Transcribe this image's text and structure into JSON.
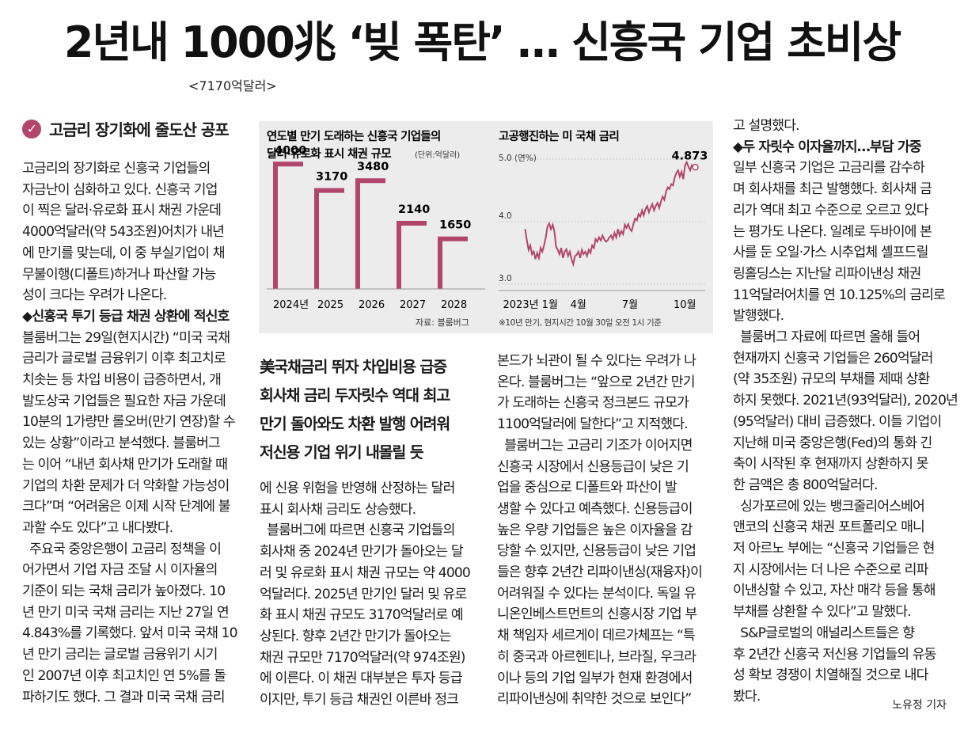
{
  "headline": "2년내 1000兆 ‘빚 폭탄’ … 신흥국 기업 초비상",
  "subhead": "<7170억달러>",
  "section1": "고금리 장기화에 줄도산 공포",
  "lead": [
    "美국채금리 뛰자 차입비용 급증",
    "회사채 금리 두자릿수 역대 최고",
    "만기 돌아와도 차환 발행 어려워",
    "저신용 기업 위기 내몰릴 듯"
  ],
  "col1": [
    "고금리의 장기화로 신흥국 기업들의",
    "자금난이 심화하고 있다. 신흥국 기업",
    "이 찍은 달러·유로화 표시 채권 가운데",
    "4000억달러(약 543조원)어치가 내년",
    "에 만기를 맞는데, 이 중 부실기업이 채",
    "무불이행(디폴트)하거나 파산할 가능",
    "성이 크다는 우려가 나온다.",
    "◆신흥국 투기 등급 채권 상환에 적신호",
    "블룸버그는 29일(현지시간) “미국 국채",
    "금리가 글로벌 금융위기 이후 최고치로",
    "치솟는 등 차입 비용이 급증하면서, 개",
    "발도상국 기업들은 필요한 자금 가운데",
    "10분의 1가량만 롤오버(만기 연장)할 수",
    "있는 상황”이라고 분석했다. 블룸버그",
    "는 이어 “내년 회사채 만기가 도래할 때",
    "기업의 차환 문제가 더 악화할 가능성이",
    "크다”며 “어려움은 이제 시작 단계에 불",
    "과할 수도 있다”고 내다봤다.",
    "  주요국 중앙은행이 고금리 정책을 이",
    "어가면서 기업 자금 조달 시 이자율의",
    "기준이 되는 국채 금리가 높아졌다. 10",
    "년 만기 미국 국채 금리는 지난 27일 연",
    "4.843%를 기록했다. 앞서 미국 국채 10",
    "년 만기 금리는 글로벌 금융위기 시기",
    "인 2007년 이후 최고치인 연 5%를 돌",
    "파하기도 했다. 그 결과 미국 국채 금리"
  ],
  "col2": [
    "에 신용 위험을 반영해 산정하는 달러",
    "표시 회사채 금리도 상승했다.",
    "  블룸버그에 따르면 신흥국 기업들의",
    "회사채 중 2024년 만기가 돌아오는 달",
    "러 및 유로화 표시 채권 규모는 약 4000",
    "억달러다. 2025년 만기인 달러 및 유로",
    "화 표시 채권 규모도 3170억달러로 예",
    "상된다. 향후 2년간 만기가 돌아오는",
    "채권 규모만 7170억달러(약 974조원)",
    "에 이른다. 이 채권 대부분은 투자 등급",
    "이지만, 투기 등급 채권인 이른바 정크"
  ],
  "col3": [
    "본드가 뇌관이 될 수 있다는 우려가 나",
    "온다. 블룸버그는 “앞으로 2년간 만기",
    "가 도래하는 신흥국 정크본드 규모가",
    "1100억달러에 달한다”고 지적했다.",
    "  블룸버그는 고금리 기조가 이어지면",
    "신흥국 시장에서 신용등급이 낮은 기",
    "업을 중심으로 디폴트와 파산이 발",
    "생할 수 있다고 예측했다. 신용등급이",
    "높은 우량 기업들은 높은 이자율을 감",
    "당할 수 있지만, 신용등급이 낮은 기업",
    "들은 향후 2년간 리파이낸싱(재융자)이",
    "어려워질 수 있다는 분석이다. 독일 유",
    "니온인베스트먼트의 신흥시장 기업 부",
    "채 책임자 세르게이 데르가체프는 “특",
    "히 중국과 아르헨티나, 브라질, 우크라",
    "이나 등의 기업 일부가 현재 환경에서",
    "리파이낸싱에 취약한 것으로 보인다”"
  ],
  "col4": [
    "고 설명했다.",
    "◆두 자릿수 이자율까지…부담 가중",
    "일부 신흥국 기업은 고금리를 감수하",
    "며 회사채를 최근 발행했다. 회사채 금",
    "리가 역대 최고 수준으로 오르고 있다",
    "는 평가도 나온다. 일례로 두바이에 본",
    "사를 둔 오일·가스 시추업체 셸프드릴",
    "링홀딩스는 지난달 리파이낸싱 채권",
    "11억달러어치를 연 10.125%의 금리로",
    "발행했다.",
    "  블룸버그 자료에 따르면 올해 들어",
    "현재까지 신흥국 기업들은 260억달러",
    "(약 35조원) 규모의 부채를 제때 상환",
    "하지 못했다. 2021년(93억달러), 2020년",
    "(95억달러) 대비 급증했다. 이들 기업이",
    "지난해 미국 중앙은행(Fed)의 통화 긴",
    "축이 시작된 후 현재까지 상환하지 못",
    "한 금액은 총 800억달러다.",
    "  싱가포르에 있는 뱅크줄리어스베어",
    "앤코의 신흥국 채권 포트폴리오 매니",
    "저 아르노 부에는 “신흥국 기업들은 현",
    "지 시장에서는 더 나은 수준으로 리파",
    "이낸싱할 수 있고, 자산 매각 등을 통해",
    "부채를 상환할 수 있다”고 말했다.",
    "  S&P글로벌의 애널리스트들은 향",
    "후 2년간 신흥국 저신용 기업들의 유동",
    "성 확보 경쟁이 치열해질 것으로 내다",
    "봤다."
  ],
  "byline": "노유정 기자",
  "chart_data": [
    {
      "type": "bar",
      "title": "연도별 만기 도래하는 신흥국 기업들의",
      "title2": "달러·유로화 표시 채권 규모",
      "unit": "(단위:억달러)",
      "categories": [
        "2024년",
        "2025",
        "2026",
        "2027",
        "2028"
      ],
      "values": [
        4000,
        3170,
        3480,
        2140,
        1650
      ],
      "value_labels": [
        "4000",
        "3170",
        "3480",
        "2140",
        "1650"
      ],
      "ylim": [
        0,
        4600
      ],
      "source": "자료: 블룸버그",
      "color": "#b1456b"
    },
    {
      "type": "line",
      "title": "고공행진하는 미 국채 금리",
      "y_top_label": "5.0 (연%)",
      "yticks": [
        {
          "v": 5.0,
          "label": ""
        },
        {
          "v": 4.0,
          "label": "4.0"
        },
        {
          "v": 3.0,
          "label": "3.0"
        }
      ],
      "ylim": [
        3.0,
        5.0
      ],
      "xticks": [
        {
          "t": 0,
          "label": "2023년 1월"
        },
        {
          "t": 3,
          "label": "4월"
        },
        {
          "t": 6,
          "label": "7월"
        },
        {
          "t": 9,
          "label": "10월"
        }
      ],
      "xlim": [
        -0.3,
        10.2
      ],
      "last_label": "4.873",
      "footnote": "※10년 만기, 현지시간 10월 30일 오전 1시 기준",
      "color": "#b1456b",
      "points": [
        [
          0,
          3.88
        ],
        [
          0.1,
          3.7
        ],
        [
          0.2,
          3.55
        ],
        [
          0.3,
          3.62
        ],
        [
          0.4,
          3.48
        ],
        [
          0.5,
          3.52
        ],
        [
          0.6,
          3.4
        ],
        [
          0.7,
          3.5
        ],
        [
          0.8,
          3.42
        ],
        [
          0.9,
          3.58
        ],
        [
          1.0,
          3.52
        ],
        [
          1.1,
          3.62
        ],
        [
          1.2,
          3.75
        ],
        [
          1.3,
          3.92
        ],
        [
          1.4,
          3.97
        ],
        [
          1.5,
          3.88
        ],
        [
          1.6,
          3.95
        ],
        [
          1.7,
          3.85
        ],
        [
          1.8,
          3.6
        ],
        [
          1.9,
          3.55
        ],
        [
          2.0,
          3.48
        ],
        [
          2.1,
          3.58
        ],
        [
          2.2,
          3.42
        ],
        [
          2.3,
          3.52
        ],
        [
          2.4,
          3.56
        ],
        [
          2.5,
          3.45
        ],
        [
          2.6,
          3.52
        ],
        [
          2.7,
          3.4
        ],
        [
          2.8,
          3.32
        ],
        [
          2.9,
          3.45
        ],
        [
          3.0,
          3.47
        ],
        [
          3.1,
          3.52
        ],
        [
          3.2,
          3.42
        ],
        [
          3.3,
          3.55
        ],
        [
          3.4,
          3.48
        ],
        [
          3.5,
          3.52
        ],
        [
          3.6,
          3.45
        ],
        [
          3.7,
          3.55
        ],
        [
          3.8,
          3.5
        ],
        [
          3.9,
          3.62
        ],
        [
          4.0,
          3.58
        ],
        [
          4.1,
          3.72
        ],
        [
          4.2,
          3.68
        ],
        [
          4.3,
          3.75
        ],
        [
          4.4,
          3.7
        ],
        [
          4.5,
          3.78
        ],
        [
          4.6,
          3.72
        ],
        [
          4.7,
          3.68
        ],
        [
          4.8,
          3.7
        ],
        [
          4.9,
          3.75
        ],
        [
          5.0,
          3.78
        ],
        [
          5.1,
          3.72
        ],
        [
          5.2,
          3.82
        ],
        [
          5.3,
          3.75
        ],
        [
          5.4,
          3.88
        ],
        [
          5.5,
          3.78
        ],
        [
          5.6,
          3.85
        ],
        [
          5.7,
          3.8
        ],
        [
          5.8,
          3.95
        ],
        [
          5.9,
          3.9
        ],
        [
          6.0,
          3.96
        ],
        [
          6.1,
          3.88
        ],
        [
          6.2,
          3.85
        ],
        [
          6.3,
          3.96
        ],
        [
          6.4,
          4.05
        ],
        [
          6.5,
          4.02
        ],
        [
          6.6,
          4.12
        ],
        [
          6.7,
          4.08
        ],
        [
          6.8,
          4.18
        ],
        [
          6.9,
          4.1
        ],
        [
          7.0,
          4.2
        ],
        [
          7.1,
          4.25
        ],
        [
          7.2,
          4.15
        ],
        [
          7.3,
          4.22
        ],
        [
          7.4,
          4.28
        ],
        [
          7.5,
          4.18
        ],
        [
          7.6,
          4.25
        ],
        [
          7.7,
          4.3
        ],
        [
          7.8,
          4.22
        ],
        [
          7.9,
          4.32
        ],
        [
          8.0,
          4.4
        ],
        [
          8.1,
          4.35
        ],
        [
          8.2,
          4.48
        ],
        [
          8.3,
          4.55
        ],
        [
          8.4,
          4.52
        ],
        [
          8.5,
          4.6
        ],
        [
          8.6,
          4.58
        ],
        [
          8.7,
          4.7
        ],
        [
          8.8,
          4.78
        ],
        [
          8.9,
          4.82
        ],
        [
          9.0,
          4.72
        ],
        [
          9.1,
          4.8
        ],
        [
          9.2,
          4.68
        ],
        [
          9.3,
          4.9
        ],
        [
          9.4,
          4.95
        ],
        [
          9.5,
          4.88
        ],
        [
          9.6,
          4.82
        ],
        [
          9.7,
          4.9
        ],
        [
          9.8,
          4.87
        ],
        [
          9.9,
          4.87
        ]
      ]
    }
  ]
}
